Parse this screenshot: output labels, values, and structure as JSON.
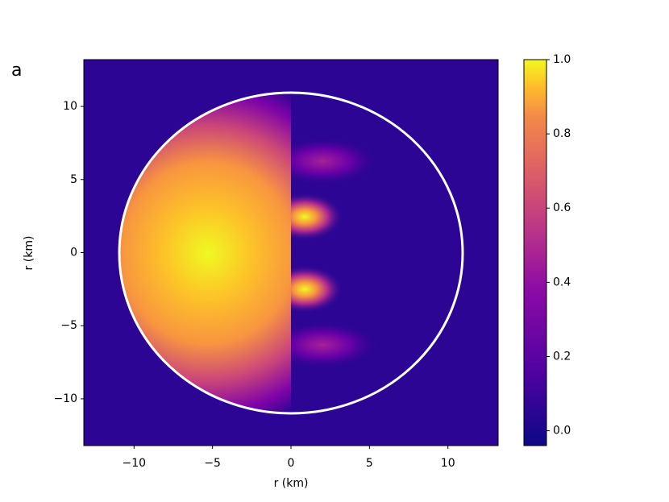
{
  "chart_data": {
    "type": "heatmap",
    "panel_label": "a",
    "xlabel": "r (km)",
    "ylabel": "r (km)",
    "xlim": [
      -13.2,
      13.2
    ],
    "ylim": [
      -13.2,
      13.2
    ],
    "xticks": [
      {
        "value": -10,
        "label": "−10"
      },
      {
        "value": -5,
        "label": "−5"
      },
      0,
      5,
      10
    ],
    "yticks": [
      {
        "value": -10,
        "label": "−10"
      },
      {
        "value": -5,
        "label": "−5"
      },
      0,
      5,
      10
    ],
    "colorbar": {
      "lim": [
        -0.04,
        1.0
      ],
      "ticks": [
        {
          "value": 0,
          "label": "0.0"
        },
        0.2,
        0.4,
        0.6,
        0.8,
        {
          "value": 1,
          "label": "1.0"
        }
      ]
    }
  }
}
